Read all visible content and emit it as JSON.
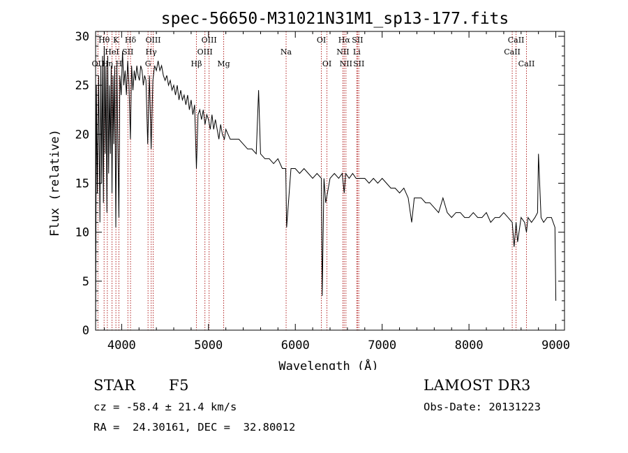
{
  "chart_data": {
    "type": "line",
    "title": "spec-56650-M31021N31M1_sp13-177.fits",
    "xlabel": "Wavelength (Å)",
    "ylabel": "Flux (relative)",
    "xlim": [
      3700,
      9100
    ],
    "ylim": [
      0,
      30.5
    ],
    "x_ticks": [
      4000,
      5000,
      6000,
      7000,
      8000,
      9000
    ],
    "y_ticks": [
      0,
      5,
      10,
      15,
      20,
      25,
      30
    ],
    "series": [
      {
        "name": "flux",
        "x": [
          3700,
          3710,
          3720,
          3735,
          3750,
          3760,
          3770,
          3780,
          3790,
          3800,
          3810,
          3820,
          3830,
          3840,
          3850,
          3860,
          3870,
          3880,
          3889,
          3900,
          3910,
          3920,
          3933,
          3945,
          3955,
          3968,
          3980,
          3995,
          4010,
          4025,
          4040,
          4055,
          4070,
          4085,
          4101,
          4115,
          4130,
          4145,
          4160,
          4175,
          4190,
          4205,
          4220,
          4235,
          4250,
          4265,
          4280,
          4300,
          4320,
          4340,
          4360,
          4380,
          4400,
          4420,
          4440,
          4460,
          4480,
          4500,
          4520,
          4540,
          4560,
          4580,
          4600,
          4620,
          4640,
          4660,
          4680,
          4700,
          4720,
          4740,
          4760,
          4780,
          4800,
          4820,
          4840,
          4861,
          4880,
          4900,
          4920,
          4940,
          4960,
          4980,
          5000,
          5020,
          5040,
          5060,
          5080,
          5100,
          5120,
          5140,
          5160,
          5183,
          5200,
          5250,
          5300,
          5350,
          5400,
          5450,
          5500,
          5550,
          5577,
          5600,
          5650,
          5700,
          5750,
          5800,
          5850,
          5890,
          5900,
          5950,
          6000,
          6050,
          6100,
          6150,
          6200,
          6250,
          6300,
          6310,
          6330,
          6350,
          6400,
          6450,
          6500,
          6540,
          6563,
          6580,
          6620,
          6660,
          6700,
          6750,
          6800,
          6850,
          6900,
          6950,
          7000,
          7050,
          7100,
          7150,
          7200,
          7250,
          7300,
          7340,
          7370,
          7400,
          7450,
          7500,
          7550,
          7600,
          7650,
          7700,
          7750,
          7800,
          7850,
          7900,
          7950,
          8000,
          8050,
          8100,
          8150,
          8200,
          8250,
          8300,
          8350,
          8400,
          8450,
          8498,
          8520,
          8542,
          8560,
          8600,
          8640,
          8662,
          8680,
          8720,
          8760,
          8790,
          8800,
          8830,
          8860,
          8900,
          8950,
          8990,
          9000
        ],
        "y": [
          0.0,
          25.0,
          14.0,
          26.0,
          11.0,
          27.0,
          15.0,
          28.0,
          13.0,
          29.0,
          18.0,
          27.0,
          12.0,
          28.0,
          16.0,
          25.0,
          18.0,
          27.0,
          14.0,
          26.0,
          19.0,
          27.0,
          10.5,
          27.0,
          20.0,
          11.5,
          26.0,
          24.0,
          28.5,
          25.0,
          26.5,
          24.0,
          27.5,
          25.0,
          19.5,
          27.0,
          24.5,
          26.5,
          25.5,
          27.0,
          26.0,
          25.5,
          27.0,
          26.5,
          25.0,
          26.0,
          25.5,
          19.0,
          26.0,
          18.5,
          25.5,
          27.0,
          26.5,
          27.5,
          26.5,
          27.0,
          26.0,
          25.5,
          26.0,
          25.0,
          25.5,
          24.5,
          25.0,
          24.0,
          25.0,
          23.5,
          24.5,
          23.5,
          24.0,
          23.0,
          24.0,
          22.5,
          23.5,
          22.0,
          23.0,
          16.5,
          22.0,
          22.5,
          21.5,
          22.5,
          21.0,
          22.0,
          21.5,
          20.5,
          22.0,
          20.5,
          21.5,
          20.5,
          19.5,
          21.0,
          20.0,
          19.5,
          20.5,
          19.5,
          19.5,
          19.5,
          19.0,
          18.5,
          18.5,
          18.0,
          24.5,
          18.0,
          17.5,
          17.5,
          17.0,
          17.5,
          16.5,
          16.5,
          10.5,
          16.5,
          16.5,
          16.0,
          16.5,
          16.0,
          15.5,
          16.0,
          15.5,
          3.5,
          15.5,
          13.0,
          15.5,
          16.0,
          15.5,
          16.0,
          14.0,
          16.0,
          15.5,
          16.0,
          15.5,
          15.5,
          15.5,
          15.0,
          15.5,
          15.0,
          15.5,
          15.0,
          14.5,
          14.5,
          14.0,
          14.5,
          13.5,
          11.0,
          13.5,
          13.5,
          13.5,
          13.0,
          13.0,
          12.5,
          12.0,
          13.5,
          12.0,
          11.5,
          12.0,
          12.0,
          11.5,
          11.5,
          12.0,
          11.5,
          11.5,
          12.0,
          11.0,
          11.5,
          11.5,
          12.0,
          11.5,
          11.0,
          8.5,
          11.0,
          9.0,
          11.5,
          11.0,
          10.0,
          11.5,
          11.0,
          11.5,
          12.0,
          18.0,
          11.5,
          11.0,
          11.5,
          11.5,
          10.5,
          3.0
        ]
      }
    ],
    "spectral_lines": [
      {
        "name": "OII",
        "x": 3727,
        "row": 3
      },
      {
        "name": "Hθ",
        "x": 3798,
        "row": 1
      },
      {
        "name": "Hη",
        "x": 3835,
        "row": 3
      },
      {
        "name": "HeI",
        "x": 3889,
        "row": 2
      },
      {
        "name": "K",
        "x": 3934,
        "row": 1
      },
      {
        "name": "H",
        "x": 3968,
        "row": 3
      },
      {
        "name": "SII",
        "x": 4072,
        "row": 2
      },
      {
        "name": "Hδ",
        "x": 4102,
        "row": 1
      },
      {
        "name": "G",
        "x": 4304,
        "row": 3
      },
      {
        "name": "Hγ",
        "x": 4340,
        "row": 2
      },
      {
        "name": "OIII",
        "x": 4363,
        "row": 1
      },
      {
        "name": "Hβ",
        "x": 4861,
        "row": 3
      },
      {
        "name": "OIII",
        "x": 4959,
        "row": 2
      },
      {
        "name": "OIII",
        "x": 5007,
        "row": 1
      },
      {
        "name": "Mg",
        "x": 5175,
        "row": 3
      },
      {
        "name": "Na",
        "x": 5894,
        "row": 2
      },
      {
        "name": "OI",
        "x": 6300,
        "row": 1
      },
      {
        "name": "OI",
        "x": 6364,
        "row": 3
      },
      {
        "name": "NII",
        "x": 6548,
        "row": 2
      },
      {
        "name": "Hα",
        "x": 6563,
        "row": 1
      },
      {
        "name": "NII",
        "x": 6583,
        "row": 3
      },
      {
        "name": "Li",
        "x": 6708,
        "row": 2
      },
      {
        "name": "SII",
        "x": 6716,
        "row": 1
      },
      {
        "name": "SII",
        "x": 6731,
        "row": 3
      },
      {
        "name": "CaII",
        "x": 8498,
        "row": 2
      },
      {
        "name": "CaII",
        "x": 8542,
        "row": 1
      },
      {
        "name": "CaII",
        "x": 8662,
        "row": 3
      }
    ],
    "line_color": "#000000",
    "marker_color": "#b22222"
  },
  "info": {
    "object_class": "STAR",
    "subclass": "F5",
    "cz": "cz = -58.4 ± 21.4 km/s",
    "coords": "RA =  24.30161, DEC =  32.80012",
    "survey": "LAMOST DR3",
    "obs_date": "Obs-Date: 20131223"
  }
}
